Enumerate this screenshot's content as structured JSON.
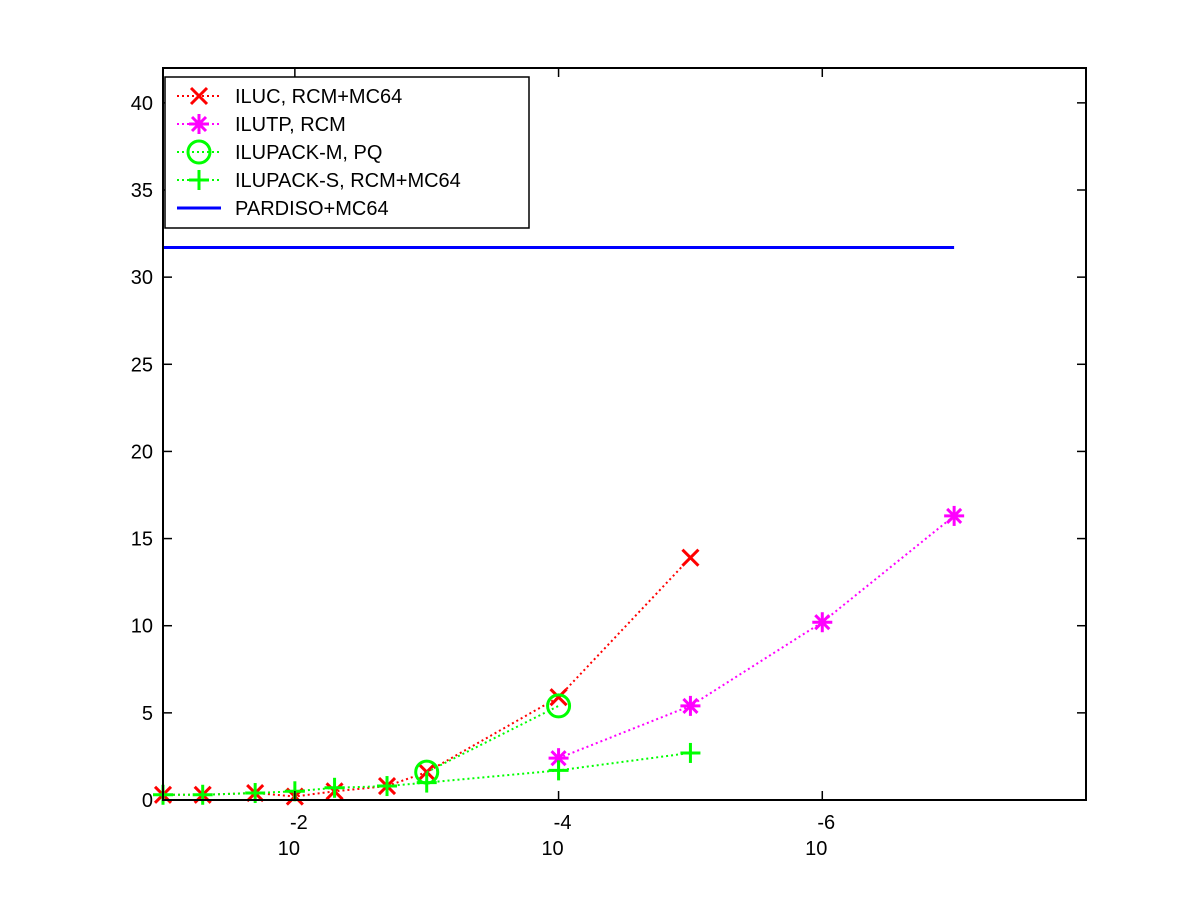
{
  "chart_data": {
    "type": "line",
    "title": "",
    "xlabel": "",
    "ylabel": "",
    "x_scale": "log",
    "x_reversed": true,
    "xlim": [
      0.1,
      1e-08
    ],
    "ylim": [
      0,
      42
    ],
    "x_ticks": [
      {
        "value": 0.01,
        "base": "10",
        "exponent": "-2"
      },
      {
        "value": 0.0001,
        "base": "10",
        "exponent": "-4"
      },
      {
        "value": 1e-06,
        "base": "10",
        "exponent": "-6"
      }
    ],
    "y_ticks": [
      0,
      5,
      10,
      15,
      20,
      25,
      30,
      35,
      40
    ],
    "grid": false,
    "legend_position": "top-left",
    "series": [
      {
        "name": "ILUC, RCM+MC64",
        "color": "#ff0000",
        "marker": "x",
        "line": "dotted",
        "x": [
          0.1,
          0.05,
          0.02,
          0.01,
          0.005,
          0.002,
          0.001,
          0.0001,
          1e-05
        ],
        "y": [
          0.3,
          0.3,
          0.4,
          0.2,
          0.5,
          0.8,
          1.6,
          5.9,
          13.9
        ]
      },
      {
        "name": "ILUTP, RCM",
        "color": "#ff00ff",
        "marker": "asterisk",
        "line": "dotted",
        "x": [
          0.0001,
          1e-05,
          1e-06,
          1e-07
        ],
        "y": [
          2.4,
          5.4,
          10.2,
          16.3
        ]
      },
      {
        "name": "ILUPACK-M, PQ",
        "color": "#00ff00",
        "marker": "circle",
        "line": "dotted",
        "x": [
          0.001,
          0.0001
        ],
        "y": [
          1.6,
          5.4
        ]
      },
      {
        "name": "ILUPACK-S, RCM+MC64",
        "color": "#00ff00",
        "marker": "plus",
        "line": "dotted",
        "x": [
          0.1,
          0.05,
          0.02,
          0.01,
          0.005,
          0.002,
          0.001,
          0.0001,
          1e-05
        ],
        "y": [
          0.3,
          0.3,
          0.4,
          0.5,
          0.7,
          0.8,
          1.0,
          1.7,
          2.7
        ]
      },
      {
        "name": "PARDISO+MC64",
        "color": "#0000ff",
        "marker": "none",
        "line": "solid",
        "x": [
          0.1,
          1e-07
        ],
        "y": [
          31.7,
          31.7
        ]
      }
    ]
  }
}
